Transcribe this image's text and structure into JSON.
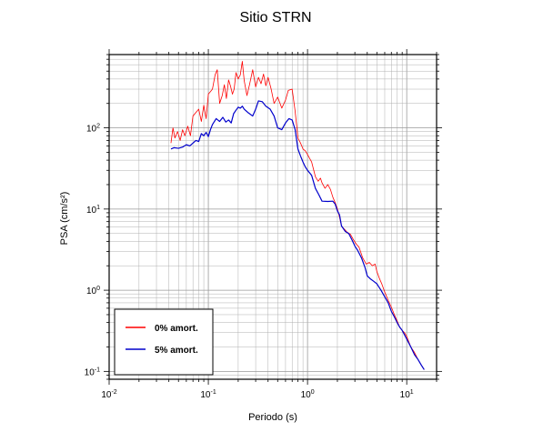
{
  "chart_data": {
    "type": "line",
    "title": "Sitio STRN",
    "xlabel": "Periodo (s)",
    "ylabel": "PSA (cm/s²)",
    "xscale": "log",
    "yscale": "log",
    "xlim": [
      0.01,
      20
    ],
    "ylim": [
      0.08,
      800
    ],
    "grid": true,
    "legend_position": "bottom-left",
    "x_ticks": [
      {
        "base": "10",
        "exp": "-2",
        "value": 0.01
      },
      {
        "base": "10",
        "exp": "-1",
        "value": 0.1
      },
      {
        "base": "10",
        "exp": "0",
        "value": 1
      },
      {
        "base": "10",
        "exp": "1",
        "value": 10
      }
    ],
    "y_ticks": [
      {
        "base": "10",
        "exp": "-1",
        "value": 0.1
      },
      {
        "base": "10",
        "exp": "0",
        "value": 1
      },
      {
        "base": "10",
        "exp": "1",
        "value": 10
      },
      {
        "base": "10",
        "exp": "2",
        "value": 100
      }
    ],
    "series": [
      {
        "name": "0% amort.",
        "color": "#ff0000",
        "points": [
          [
            0.042,
            65
          ],
          [
            0.044,
            100
          ],
          [
            0.046,
            75
          ],
          [
            0.049,
            90
          ],
          [
            0.052,
            70
          ],
          [
            0.055,
            95
          ],
          [
            0.058,
            80
          ],
          [
            0.062,
            105
          ],
          [
            0.066,
            80
          ],
          [
            0.07,
            140
          ],
          [
            0.075,
            155
          ],
          [
            0.08,
            170
          ],
          [
            0.085,
            120
          ],
          [
            0.09,
            190
          ],
          [
            0.095,
            130
          ],
          [
            0.1,
            260
          ],
          [
            0.105,
            280
          ],
          [
            0.11,
            300
          ],
          [
            0.117,
            450
          ],
          [
            0.123,
            520
          ],
          [
            0.13,
            200
          ],
          [
            0.138,
            250
          ],
          [
            0.145,
            340
          ],
          [
            0.152,
            230
          ],
          [
            0.16,
            390
          ],
          [
            0.167,
            330
          ],
          [
            0.175,
            260
          ],
          [
            0.182,
            300
          ],
          [
            0.19,
            480
          ],
          [
            0.2,
            400
          ],
          [
            0.21,
            450
          ],
          [
            0.22,
            660
          ],
          [
            0.23,
            380
          ],
          [
            0.245,
            250
          ],
          [
            0.26,
            340
          ],
          [
            0.28,
            520
          ],
          [
            0.3,
            320
          ],
          [
            0.32,
            420
          ],
          [
            0.34,
            350
          ],
          [
            0.36,
            460
          ],
          [
            0.38,
            330
          ],
          [
            0.4,
            420
          ],
          [
            0.43,
            300
          ],
          [
            0.46,
            200
          ],
          [
            0.5,
            240
          ],
          [
            0.55,
            175
          ],
          [
            0.6,
            220
          ],
          [
            0.64,
            290
          ],
          [
            0.7,
            300
          ],
          [
            0.75,
            160
          ],
          [
            0.8,
            75
          ],
          [
            0.85,
            65
          ],
          [
            0.9,
            55
          ],
          [
            0.95,
            52
          ],
          [
            1.0,
            47
          ],
          [
            1.05,
            42
          ],
          [
            1.1,
            38
          ],
          [
            1.2,
            25
          ],
          [
            1.28,
            22
          ],
          [
            1.35,
            24
          ],
          [
            1.4,
            21
          ],
          [
            1.5,
            18
          ],
          [
            1.6,
            20
          ],
          [
            1.7,
            17.5
          ],
          [
            1.8,
            14
          ],
          [
            1.9,
            12
          ],
          [
            2.0,
            10
          ],
          [
            2.1,
            8
          ],
          [
            2.2,
            6.2
          ],
          [
            2.3,
            5.8
          ],
          [
            2.5,
            5.2
          ],
          [
            2.7,
            4.9
          ],
          [
            2.9,
            4.2
          ],
          [
            3.1,
            3.7
          ],
          [
            3.3,
            3.4
          ],
          [
            3.6,
            2.5
          ],
          [
            3.9,
            2.1
          ],
          [
            4.2,
            2.2
          ],
          [
            4.5,
            2.0
          ],
          [
            4.8,
            2.1
          ],
          [
            5.0,
            1.7
          ],
          [
            5.3,
            1.4
          ],
          [
            5.6,
            1.2
          ],
          [
            6.0,
            0.95
          ],
          [
            6.5,
            0.75
          ],
          [
            7.0,
            0.62
          ],
          [
            7.5,
            0.5
          ],
          [
            8.0,
            0.42
          ],
          [
            8.5,
            0.35
          ],
          [
            9.0,
            0.32
          ],
          [
            9.5,
            0.3
          ],
          [
            10.0,
            0.27
          ],
          [
            11.0,
            0.2
          ],
          [
            12.0,
            0.17
          ],
          [
            13.0,
            0.14
          ],
          [
            14.0,
            0.12
          ],
          [
            15.0,
            0.105
          ]
        ]
      },
      {
        "name": "5% amort.",
        "color": "#0000cc",
        "points": [
          [
            0.042,
            55
          ],
          [
            0.045,
            57
          ],
          [
            0.05,
            56
          ],
          [
            0.055,
            58
          ],
          [
            0.06,
            62
          ],
          [
            0.065,
            60
          ],
          [
            0.07,
            65
          ],
          [
            0.075,
            70
          ],
          [
            0.08,
            68
          ],
          [
            0.085,
            85
          ],
          [
            0.09,
            80
          ],
          [
            0.095,
            88
          ],
          [
            0.1,
            78
          ],
          [
            0.105,
            95
          ],
          [
            0.11,
            110
          ],
          [
            0.12,
            130
          ],
          [
            0.13,
            120
          ],
          [
            0.14,
            135
          ],
          [
            0.15,
            118
          ],
          [
            0.16,
            125
          ],
          [
            0.17,
            115
          ],
          [
            0.18,
            150
          ],
          [
            0.19,
            165
          ],
          [
            0.2,
            180
          ],
          [
            0.21,
            175
          ],
          [
            0.22,
            185
          ],
          [
            0.23,
            170
          ],
          [
            0.25,
            155
          ],
          [
            0.28,
            140
          ],
          [
            0.3,
            170
          ],
          [
            0.32,
            215
          ],
          [
            0.35,
            210
          ],
          [
            0.38,
            185
          ],
          [
            0.42,
            170
          ],
          [
            0.46,
            140
          ],
          [
            0.5,
            100
          ],
          [
            0.55,
            95
          ],
          [
            0.6,
            115
          ],
          [
            0.65,
            130
          ],
          [
            0.7,
            125
          ],
          [
            0.75,
            95
          ],
          [
            0.8,
            55
          ],
          [
            0.85,
            45
          ],
          [
            0.9,
            38
          ],
          [
            0.95,
            33
          ],
          [
            1.0,
            30
          ],
          [
            1.1,
            26
          ],
          [
            1.2,
            18
          ],
          [
            1.3,
            15
          ],
          [
            1.4,
            12.5
          ],
          [
            1.6,
            12.4
          ],
          [
            1.8,
            12.5
          ],
          [
            1.9,
            11.5
          ],
          [
            2.0,
            9.5
          ],
          [
            2.1,
            8.5
          ],
          [
            2.2,
            6.2
          ],
          [
            2.4,
            5.3
          ],
          [
            2.6,
            5.0
          ],
          [
            2.8,
            4.2
          ],
          [
            3.0,
            3.5
          ],
          [
            3.2,
            3.1
          ],
          [
            3.5,
            2.5
          ],
          [
            3.8,
            1.9
          ],
          [
            4.0,
            1.5
          ],
          [
            4.3,
            1.38
          ],
          [
            4.6,
            1.3
          ],
          [
            5.0,
            1.2
          ],
          [
            5.5,
            1.0
          ],
          [
            6.0,
            0.83
          ],
          [
            6.5,
            0.7
          ],
          [
            7.0,
            0.55
          ],
          [
            7.5,
            0.47
          ],
          [
            8.0,
            0.4
          ],
          [
            8.5,
            0.35
          ],
          [
            9.0,
            0.32
          ],
          [
            10.0,
            0.25
          ],
          [
            11.0,
            0.2
          ],
          [
            12.0,
            0.16
          ],
          [
            13.0,
            0.14
          ],
          [
            14.0,
            0.12
          ],
          [
            15.0,
            0.105
          ]
        ]
      }
    ]
  }
}
